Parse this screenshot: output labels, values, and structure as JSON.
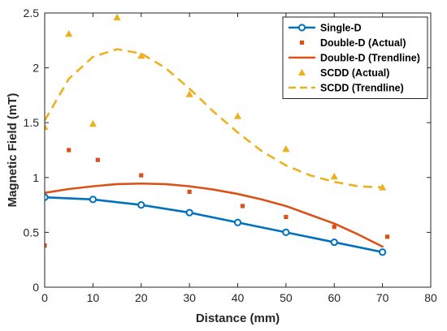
{
  "chart_data": {
    "type": "line",
    "xlabel": "Distance (mm)",
    "ylabel": "Magnetic Field (mT)",
    "xlim": [
      0,
      80
    ],
    "ylim": [
      0,
      2.5
    ],
    "xticks": [
      0,
      10,
      20,
      30,
      40,
      50,
      60,
      70,
      80
    ],
    "yticks": [
      0,
      0.5,
      1,
      1.5,
      2,
      2.5
    ],
    "ytick_labels": [
      "0",
      "0.5",
      "1",
      "1.5",
      "2",
      "2.5"
    ],
    "grid": false,
    "legend_position": "top-right",
    "series": [
      {
        "name": "Single-D",
        "style": "line-circle",
        "color": "#0072BD",
        "x": [
          0,
          10,
          20,
          30,
          40,
          50,
          60,
          70
        ],
        "y": [
          0.82,
          0.8,
          0.75,
          0.68,
          0.59,
          0.5,
          0.41,
          0.32
        ]
      },
      {
        "name": "Double-D (Actual)",
        "style": "square",
        "color": "#D95319",
        "x": [
          0,
          5,
          11,
          20,
          30,
          41,
          50,
          60,
          71
        ],
        "y": [
          0.38,
          1.25,
          1.16,
          1.02,
          0.87,
          0.74,
          0.64,
          0.55,
          0.46
        ]
      },
      {
        "name": "Double-D (Trendline)",
        "style": "line",
        "color": "#D95319",
        "x": [
          0,
          5,
          10,
          15,
          20,
          25,
          30,
          35,
          40,
          45,
          50,
          55,
          60,
          65,
          70
        ],
        "y": [
          0.86,
          0.895,
          0.92,
          0.94,
          0.945,
          0.94,
          0.92,
          0.89,
          0.85,
          0.8,
          0.74,
          0.66,
          0.58,
          0.48,
          0.37
        ]
      },
      {
        "name": "SCDD (Actual)",
        "style": "triangle",
        "color": "#EDB120",
        "x": [
          0,
          5,
          10,
          15,
          20,
          30,
          40,
          50,
          60,
          70
        ],
        "y": [
          1.46,
          2.31,
          1.49,
          2.46,
          2.11,
          1.76,
          1.56,
          1.26,
          1.01,
          0.91
        ]
      },
      {
        "name": "SCDD (Trendline)",
        "style": "dashed",
        "color": "#EDB120",
        "x": [
          0,
          5,
          10,
          15,
          20,
          25,
          30,
          35,
          40,
          45,
          50,
          55,
          60,
          65,
          70
        ],
        "y": [
          1.52,
          1.9,
          2.1,
          2.17,
          2.13,
          2.0,
          1.81,
          1.6,
          1.41,
          1.24,
          1.11,
          1.02,
          0.96,
          0.92,
          0.91
        ]
      }
    ]
  }
}
